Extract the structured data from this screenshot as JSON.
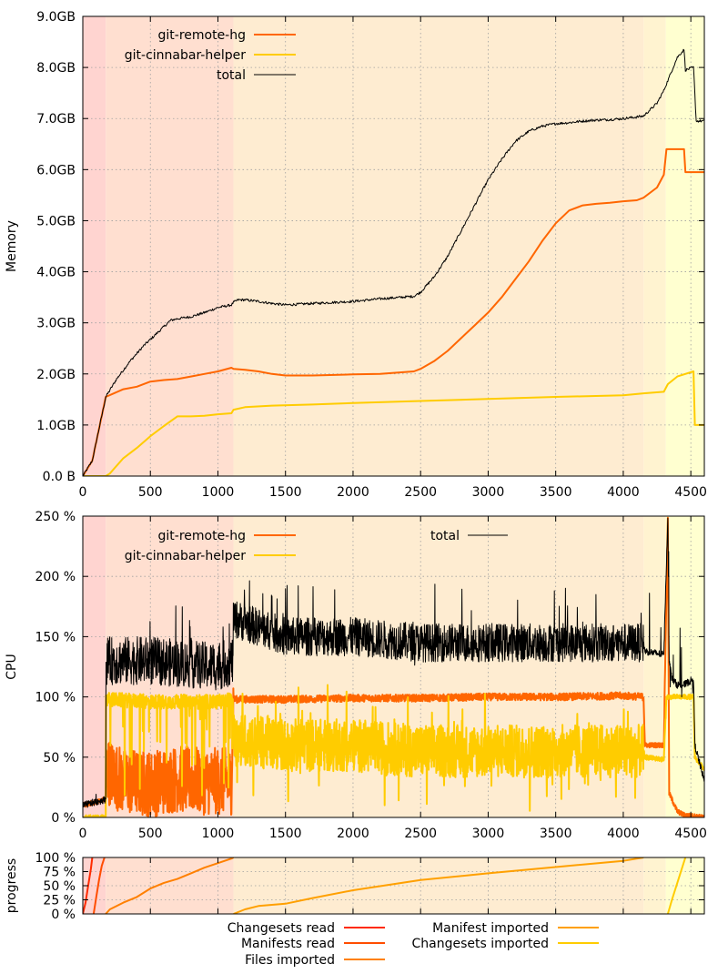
{
  "phases": {
    "boundaries": [
      0,
      170,
      1115,
      4150,
      4315,
      4600
    ],
    "colors": [
      "#ffd4d0",
      "#ffdfd0",
      "#feecd1",
      "#fff3d0",
      "#ffffd0"
    ]
  },
  "chart_data": [
    {
      "type": "line",
      "ylabel": "Memory",
      "xlim": [
        0,
        4600
      ],
      "ylim": [
        0,
        9
      ],
      "x_ticks": [
        "0",
        "500",
        "1000",
        "1500",
        "2000",
        "2500",
        "3000",
        "3500",
        "4000",
        "4500"
      ],
      "y_ticks": [
        "0.0 B",
        "1.0GB",
        "2.0GB",
        "3.0GB",
        "4.0GB",
        "5.0GB",
        "6.0GB",
        "7.0GB",
        "8.0GB",
        "9.0GB"
      ],
      "grid": true,
      "legend": "top-left",
      "series": [
        {
          "name": "git-remote-hg",
          "color": "#ff6600",
          "x": [
            0,
            70,
            170,
            300,
            400,
            500,
            600,
            700,
            800,
            900,
            1000,
            1100,
            1115,
            1200,
            1300,
            1400,
            1500,
            1700,
            2000,
            2200,
            2450,
            2500,
            2600,
            2700,
            2800,
            2900,
            3000,
            3100,
            3200,
            3300,
            3400,
            3500,
            3600,
            3700,
            3800,
            3900,
            4000,
            4100,
            4150,
            4250,
            4300,
            4320,
            4450,
            4460,
            4580,
            4600
          ],
          "y": [
            0,
            0.3,
            1.55,
            1.7,
            1.75,
            1.85,
            1.88,
            1.9,
            1.95,
            2.0,
            2.05,
            2.12,
            2.1,
            2.08,
            2.05,
            2.0,
            1.97,
            1.97,
            1.99,
            2.0,
            2.05,
            2.1,
            2.25,
            2.45,
            2.7,
            2.95,
            3.2,
            3.5,
            3.85,
            4.2,
            4.6,
            4.95,
            5.2,
            5.3,
            5.33,
            5.35,
            5.38,
            5.4,
            5.45,
            5.65,
            5.9,
            6.4,
            6.4,
            5.95,
            5.95,
            5.95
          ]
        },
        {
          "name": "git-cinnabar-helper",
          "color": "#ffcc00",
          "x": [
            0,
            170,
            200,
            300,
            400,
            500,
            600,
            700,
            800,
            900,
            1000,
            1100,
            1115,
            1200,
            1400,
            1700,
            2000,
            2500,
            3000,
            3500,
            4000,
            4150,
            4300,
            4330,
            4400,
            4520,
            4530,
            4600
          ],
          "y": [
            0,
            0,
            0.05,
            0.35,
            0.55,
            0.78,
            0.98,
            1.17,
            1.17,
            1.18,
            1.21,
            1.23,
            1.3,
            1.35,
            1.38,
            1.4,
            1.43,
            1.47,
            1.51,
            1.55,
            1.58,
            1.62,
            1.65,
            1.8,
            1.95,
            2.05,
            1.0,
            1.0
          ]
        },
        {
          "name": "total",
          "color": "#000000",
          "x": [
            0,
            70,
            170,
            250,
            350,
            450,
            550,
            650,
            700,
            800,
            900,
            1000,
            1100,
            1115,
            1150,
            1200,
            1300,
            1400,
            1500,
            1700,
            2000,
            2200,
            2450,
            2500,
            2600,
            2700,
            2800,
            2900,
            3000,
            3100,
            3200,
            3300,
            3400,
            3500,
            3600,
            3700,
            3800,
            3900,
            4000,
            4100,
            4150,
            4250,
            4300,
            4400,
            4450,
            4460,
            4520,
            4540,
            4580,
            4600
          ],
          "y": [
            0,
            0.3,
            1.55,
            1.9,
            2.25,
            2.55,
            2.8,
            3.05,
            3.08,
            3.12,
            3.2,
            3.3,
            3.35,
            3.4,
            3.45,
            3.45,
            3.42,
            3.38,
            3.35,
            3.38,
            3.42,
            3.47,
            3.52,
            3.6,
            3.9,
            4.3,
            4.8,
            5.3,
            5.8,
            6.2,
            6.55,
            6.75,
            6.85,
            6.9,
            6.92,
            6.95,
            6.97,
            6.98,
            7.0,
            7.03,
            7.05,
            7.3,
            7.55,
            8.2,
            8.35,
            7.95,
            8.0,
            6.95,
            6.95,
            6.95
          ]
        }
      ]
    },
    {
      "type": "line",
      "ylabel": "CPU",
      "xlim": [
        0,
        4600
      ],
      "ylim": [
        0,
        250
      ],
      "x_ticks": [
        "0",
        "500",
        "1000",
        "1500",
        "2000",
        "2500",
        "3000",
        "3500",
        "4000",
        "4500"
      ],
      "y_ticks": [
        "0 %",
        "50 %",
        "100 %",
        "150 %",
        "200 %",
        "250 %"
      ],
      "grid": true,
      "legend": "top",
      "series": [
        {
          "name": "git-remote-hg",
          "color": "#ff6600",
          "x": [
            0,
            170,
            171,
            300,
            500,
            700,
            900,
            1100,
            1115,
            1500,
            2000,
            2500,
            3000,
            3500,
            4000,
            4150,
            4160,
            4300,
            4330,
            4340,
            4400,
            4450,
            4600
          ],
          "y": [
            10,
            15,
            40,
            30,
            28,
            32,
            30,
            30,
            98,
            98,
            99,
            99,
            100,
            100,
            101,
            100,
            60,
            60,
            250,
            20,
            5,
            2,
            0
          ]
        },
        {
          "name": "git-cinnabar-helper",
          "color": "#ffcc00",
          "x": [
            0,
            170,
            171,
            500,
            1000,
            1110,
            1115,
            1500,
            2000,
            2500,
            3000,
            3500,
            4000,
            4150,
            4160,
            4300,
            4320,
            4400,
            4450,
            4520,
            4530,
            4600
          ],
          "y": [
            0,
            0,
            98,
            96,
            96,
            98,
            65,
            60,
            60,
            55,
            55,
            55,
            55,
            55,
            50,
            48,
            100,
            100,
            100,
            100,
            50,
            40
          ]
        },
        {
          "name": "total",
          "color": "#000000",
          "x": [
            0,
            170,
            171,
            500,
            1000,
            1110,
            1115,
            1500,
            2000,
            2500,
            3000,
            3500,
            4000,
            4150,
            4160,
            4300,
            4330,
            4340,
            4360,
            4400,
            4450,
            4520,
            4530,
            4600
          ],
          "y": [
            10,
            15,
            130,
            130,
            125,
            130,
            165,
            150,
            150,
            145,
            145,
            145,
            145,
            145,
            138,
            135,
            250,
            130,
            115,
            110,
            110,
            115,
            60,
            30
          ]
        }
      ]
    },
    {
      "type": "line",
      "ylabel": "progress",
      "xlim": [
        0,
        4600
      ],
      "ylim": [
        0,
        100
      ],
      "y_ticks": [
        "0 %",
        "25 %",
        "50 %",
        "75 %",
        "100 %"
      ],
      "grid": true,
      "legend": "bottom",
      "series": [
        {
          "name": "Changesets read",
          "color": "#ff2a00",
          "x": [
            0,
            20,
            40,
            60,
            70
          ],
          "y": [
            0,
            20,
            50,
            80,
            100
          ]
        },
        {
          "name": "Manifests read",
          "color": "#ff4d00",
          "x": [
            80,
            100,
            120,
            140,
            160
          ],
          "y": [
            0,
            30,
            60,
            85,
            100
          ]
        },
        {
          "name": "Files imported",
          "color": "#ff8000",
          "x": [
            170,
            200,
            300,
            400,
            500,
            600,
            700,
            800,
            900,
            1000,
            1100,
            1115
          ],
          "y": [
            0,
            8,
            20,
            30,
            45,
            55,
            62,
            72,
            82,
            90,
            98,
            100
          ]
        },
        {
          "name": "Manifest imported",
          "color": "#ffa000",
          "x": [
            1115,
            1200,
            1300,
            1500,
            1700,
            2000,
            2500,
            3000,
            3500,
            4000,
            4150
          ],
          "y": [
            0,
            8,
            14,
            18,
            28,
            42,
            60,
            72,
            83,
            94,
            100
          ]
        },
        {
          "name": "Changesets imported",
          "color": "#ffcc00",
          "x": [
            4330,
            4360,
            4400,
            4440,
            4460
          ],
          "y": [
            0,
            25,
            55,
            85,
            100
          ]
        }
      ]
    }
  ]
}
